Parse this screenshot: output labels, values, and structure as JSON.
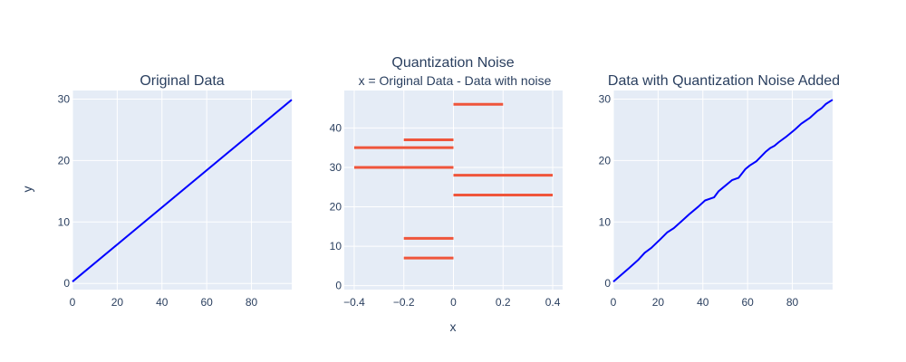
{
  "figure": {
    "suptitle": "Quantization Noise",
    "xlabel_shared": "x",
    "ylabel_shared": "y",
    "plot_bgcolor": "#e5ecf6",
    "grid_color": "#ffffff",
    "text_color": "#2a3f5f"
  },
  "chart_data": [
    {
      "type": "line",
      "title": "Original Data",
      "xlim": [
        0,
        98
      ],
      "ylim": [
        -1,
        31.4
      ],
      "xticks": [
        0,
        20,
        40,
        60,
        80
      ],
      "yticks": [
        0,
        10,
        20,
        30
      ],
      "grid": true,
      "series": [
        {
          "color": "#0000ff",
          "x": [
            0,
            98
          ],
          "y": [
            0.3,
            29.9
          ]
        }
      ]
    },
    {
      "type": "bar",
      "orientation": "horizontal",
      "title": "x = Original Data - Data with noise",
      "xlim": [
        -0.44,
        0.44
      ],
      "ylim": [
        -1,
        49.5
      ],
      "xticks": [
        -0.4,
        -0.2,
        0,
        0.2,
        0.4
      ],
      "yticks": [
        0,
        10,
        20,
        30,
        40
      ],
      "grid": true,
      "color": "#ef553b",
      "bars": [
        {
          "y": 46,
          "value": 0.2
        },
        {
          "y": 37,
          "value": -0.2
        },
        {
          "y": 35,
          "value": -0.4
        },
        {
          "y": 30,
          "value": -0.4
        },
        {
          "y": 28,
          "value": 0.4
        },
        {
          "y": 23,
          "value": 0.4
        },
        {
          "y": 12,
          "value": -0.2
        },
        {
          "y": 7,
          "value": -0.2
        }
      ]
    },
    {
      "type": "line",
      "title": "Data with Quantization Noise Added",
      "xlim": [
        0,
        98
      ],
      "ylim": [
        -1,
        31.4
      ],
      "xticks": [
        0,
        20,
        40,
        60,
        80
      ],
      "yticks": [
        0,
        10,
        20,
        30
      ],
      "grid": true,
      "series": [
        {
          "color": "#0000ff",
          "x": [
            0,
            7,
            11,
            14,
            17,
            21,
            24,
            27,
            31,
            34,
            38,
            41,
            45,
            47,
            49,
            53,
            56,
            59,
            61,
            64,
            68,
            70,
            72,
            74,
            77,
            81,
            84,
            88,
            91,
            93,
            95,
            98
          ],
          "y": [
            0.3,
            2.5,
            3.8,
            5.0,
            5.8,
            7.2,
            8.3,
            9.0,
            10.3,
            11.3,
            12.5,
            13.5,
            14.0,
            15.0,
            15.6,
            16.8,
            17.2,
            18.6,
            19.2,
            19.9,
            21.4,
            22.0,
            22.4,
            23.0,
            23.8,
            25.0,
            26.0,
            27.0,
            28.0,
            28.5,
            29.2,
            29.9
          ]
        }
      ]
    }
  ]
}
